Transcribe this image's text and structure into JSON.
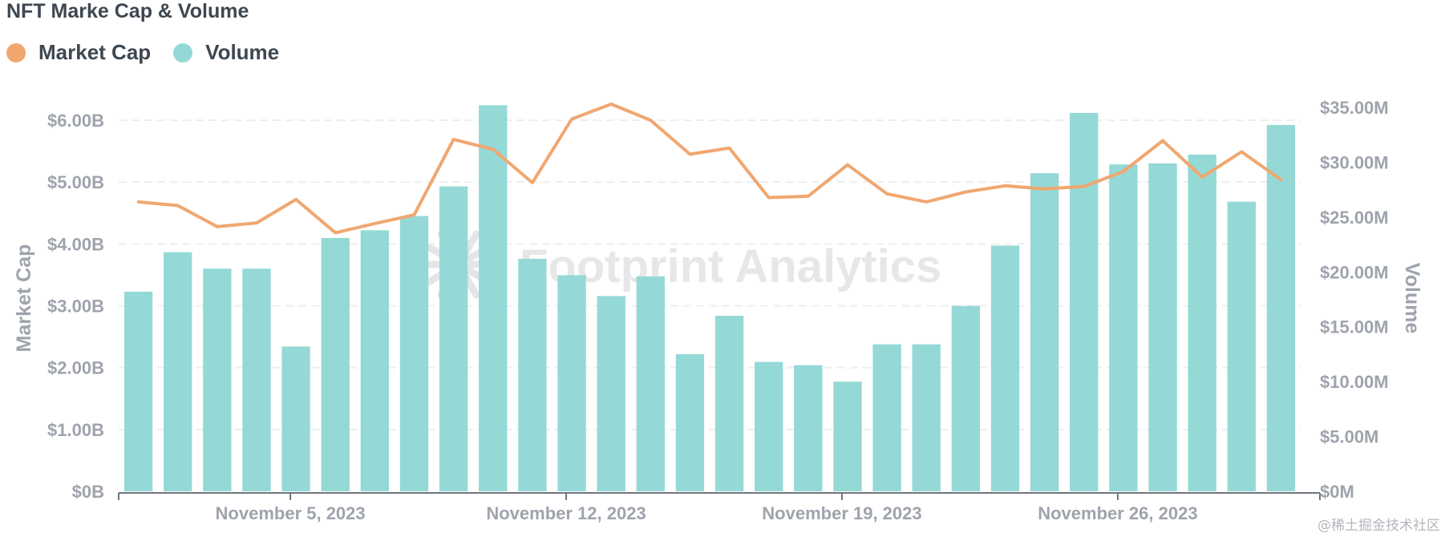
{
  "chart_title": "NFT Marke Cap & Volume",
  "watermark": "Footprint Analytics",
  "corner_text": "@稀土掘金技术社区",
  "colors": {
    "market_cap": "#f0a770",
    "volume": "#95d9d6",
    "grid": "#eceef0",
    "axis_text": "#9ea3ac",
    "title": "#3e4750"
  },
  "chart_data": {
    "type": "bar",
    "title": "NFT Marke Cap & Volume",
    "legend_position": "top-left",
    "grid": true,
    "x": [
      "2023-11-01",
      "2023-11-02",
      "2023-11-03",
      "2023-11-04",
      "2023-11-05",
      "2023-11-06",
      "2023-11-07",
      "2023-11-08",
      "2023-11-09",
      "2023-11-10",
      "2023-11-11",
      "2023-11-12",
      "2023-11-13",
      "2023-11-14",
      "2023-11-15",
      "2023-11-16",
      "2023-11-17",
      "2023-11-18",
      "2023-11-19",
      "2023-11-20",
      "2023-11-21",
      "2023-11-22",
      "2023-11-23",
      "2023-11-24",
      "2023-11-25",
      "2023-11-26",
      "2023-11-27",
      "2023-11-28",
      "2023-11-29",
      "2023-11-30"
    ],
    "x_tick_labels": [
      "November 5, 2023",
      "November 12, 2023",
      "November 19, 2023",
      "November 26, 2023"
    ],
    "x_tick_dates": [
      "2023-11-05",
      "2023-11-12",
      "2023-11-19",
      "2023-11-26"
    ],
    "y_left": {
      "label": "Market Cap",
      "range": [
        0,
        6.0
      ],
      "unit": "billions USD",
      "tick_labels": [
        "$0B",
        "$1.00B",
        "$2.00B",
        "$3.00B",
        "$4.00B",
        "$5.00B",
        "$6.00B"
      ],
      "tick_values": [
        0,
        1,
        2,
        3,
        4,
        5,
        6
      ]
    },
    "y_right": {
      "label": "Volume",
      "range": [
        0,
        35
      ],
      "unit": "millions USD",
      "tick_labels": [
        "$0M",
        "$5.00M",
        "$10.00M",
        "$15.00M",
        "$20.00M",
        "$25.00M",
        "$30.00M",
        "$35.00M"
      ],
      "tick_values": [
        0,
        5,
        10,
        15,
        20,
        25,
        30,
        35
      ]
    },
    "series": [
      {
        "name": "Volume",
        "type": "bar",
        "axis": "right",
        "values": [
          18.2,
          21.8,
          20.3,
          20.3,
          13.2,
          23.1,
          23.8,
          25.1,
          27.8,
          35.2,
          21.2,
          19.7,
          17.8,
          19.6,
          12.5,
          16.0,
          11.8,
          11.5,
          10.0,
          13.4,
          13.4,
          16.9,
          22.4,
          29.0,
          34.5,
          29.8,
          29.9,
          30.7,
          26.4,
          33.4
        ]
      },
      {
        "name": "Market Cap",
        "type": "line",
        "axis": "left",
        "values": [
          4.68,
          4.62,
          4.28,
          4.34,
          4.72,
          4.18,
          4.33,
          4.47,
          5.69,
          5.53,
          4.99,
          6.02,
          6.26,
          6.0,
          5.45,
          5.55,
          4.75,
          4.77,
          5.28,
          4.81,
          4.68,
          4.84,
          4.94,
          4.89,
          4.93,
          5.17,
          5.67,
          5.08,
          5.49,
          5.04
        ]
      }
    ]
  }
}
